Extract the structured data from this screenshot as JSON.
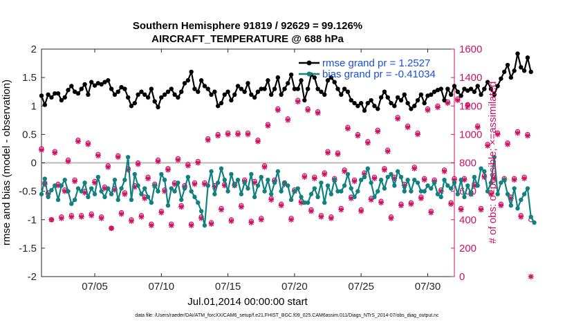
{
  "chart_data": {
    "type": "line",
    "title_line1": "Southern Hemisphere 91819 / 92629 = 99.126%",
    "title_line2": "AIRCRAFT_TEMPERATURE @ 688 hPa",
    "xlabel": "Jul.01,2014 00:00:00 start",
    "ylabel_left": "rmse and bias (model - observation)",
    "ylabel_right": "# of obs: o=possible; ×=assimilated",
    "footnote": "data file: /Users/raeder/DAI/ATM_forcXX/CAM6_setup/f.e21.FHIST_BGC.f09_025.CAM6assim.011/Diags_NTrS_2014-07/obs_diag_output.nc",
    "x_range_days": [
      1,
      32
    ],
    "ylim_left": [
      -2,
      2
    ],
    "ylim_right": [
      0,
      1600
    ],
    "x_ticks": [
      {
        "day": 5,
        "label": "07/05"
      },
      {
        "day": 10,
        "label": "07/10"
      },
      {
        "day": 15,
        "label": "07/15"
      },
      {
        "day": 20,
        "label": "07/20"
      },
      {
        "day": 25,
        "label": "07/25"
      },
      {
        "day": 30,
        "label": "07/30"
      }
    ],
    "y_ticks_left": [
      {
        "value": 2,
        "label": "2"
      },
      {
        "value": 1.5,
        "label": "1.5"
      },
      {
        "value": 1,
        "label": "1"
      },
      {
        "value": 0.5,
        "label": "0.5"
      },
      {
        "value": 0,
        "label": "0"
      },
      {
        "value": -0.5,
        "label": "-0.5"
      },
      {
        "value": -1,
        "label": "-1"
      },
      {
        "value": -1.5,
        "label": "-1.5"
      },
      {
        "value": -2,
        "label": "-2"
      }
    ],
    "y_ticks_right": [
      {
        "value": 1600,
        "label": "1600"
      },
      {
        "value": 1400,
        "label": "1400"
      },
      {
        "value": 1200,
        "label": "1200"
      },
      {
        "value": 1000,
        "label": "1000"
      },
      {
        "value": 800,
        "label": "800"
      },
      {
        "value": 600,
        "label": "600"
      },
      {
        "value": 400,
        "label": "400"
      },
      {
        "value": 200,
        "label": "200"
      },
      {
        "value": 0,
        "label": "0"
      }
    ],
    "series_rmse": {
      "name": "rmse",
      "legend_label": "rmse grand pr = 1.2527",
      "color": "#000000",
      "x_start": 1.0,
      "x_step": 0.25,
      "values": [
        1.18,
        1.02,
        1.2,
        1.15,
        1.22,
        1.22,
        1.1,
        1.15,
        1.28,
        1.35,
        1.25,
        1.22,
        1.3,
        1.38,
        1.2,
        1.42,
        1.36,
        1.4,
        1.38,
        1.42,
        1.45,
        1.3,
        1.2,
        1.25,
        1.33,
        1.3,
        1.15,
        1.0,
        1.05,
        1.2,
        1.25,
        1.2,
        1.15,
        1.3,
        1.08,
        0.98,
        1.15,
        1.2,
        1.25,
        1.3,
        1.2,
        1.15,
        1.25,
        1.4,
        1.45,
        1.6,
        1.3,
        1.25,
        1.45,
        1.35,
        1.3,
        1.2,
        1.25,
        1.0,
        1.05,
        1.2,
        1.25,
        1.1,
        1.2,
        1.35,
        1.3,
        1.25,
        1.4,
        1.2,
        1.15,
        1.25,
        1.3,
        1.3,
        1.45,
        1.2,
        1.3,
        1.5,
        1.2,
        1.3,
        1.4,
        1.55,
        1.3,
        1.3,
        1.45,
        1.1,
        1.3,
        1.55,
        1.5,
        1.3,
        1.25,
        1.2,
        1.45,
        1.5,
        1.42,
        1.3,
        1.2,
        1.3,
        1.25,
        1.1,
        1.05,
        1.0,
        1.05,
        0.92,
        1.05,
        1.1,
        1.0,
        0.95,
        1.15,
        1.25,
        1.15,
        1.05,
        1.0,
        1.15,
        1.1,
        1.2,
        1.05,
        0.95,
        1.0,
        1.1,
        1.2,
        1.05,
        1.18,
        1.2,
        1.25,
        1.28,
        1.3,
        1.1,
        1.3,
        1.2,
        1.35,
        1.25,
        1.18,
        1.3,
        1.27,
        1.3,
        1.25,
        1.35,
        1.2,
        1.3,
        1.42,
        1.3,
        1.2,
        1.35,
        1.48,
        1.6,
        1.72,
        1.5,
        1.62,
        1.92,
        1.68,
        1.62,
        1.85,
        1.6
      ]
    },
    "series_bias": {
      "name": "bias",
      "legend_label": "bias grand pr = -0.41034",
      "color": "#108080",
      "x_start": 1.0,
      "x_step": 0.25,
      "values": [
        -0.55,
        -0.28,
        -0.6,
        -0.48,
        -0.4,
        -0.65,
        -0.4,
        -0.3,
        -0.5,
        -0.72,
        -0.65,
        -0.45,
        -0.5,
        -0.35,
        -0.6,
        -0.45,
        -0.55,
        -0.25,
        -0.5,
        -0.6,
        -0.45,
        -0.55,
        -0.3,
        -0.65,
        -0.45,
        -0.3,
        0.1,
        -0.65,
        -0.2,
        -0.4,
        -0.55,
        -0.45,
        -0.6,
        -0.7,
        -0.4,
        -0.5,
        -0.2,
        -0.3,
        -0.75,
        -0.45,
        -0.5,
        -0.35,
        -0.65,
        -0.45,
        -0.25,
        -0.5,
        -0.6,
        -0.7,
        -0.85,
        -1.1,
        -0.4,
        -0.15,
        -0.55,
        -0.35,
        -0.1,
        -0.3,
        -0.5,
        -0.2,
        -0.4,
        -0.3,
        -0.55,
        -0.35,
        -0.45,
        -0.2,
        -0.6,
        -0.4,
        -0.25,
        -0.5,
        -0.3,
        -0.55,
        -0.35,
        -0.15,
        -0.5,
        -0.35,
        -0.4,
        -0.65,
        -0.5,
        -0.45,
        -0.6,
        -0.7,
        -0.7,
        -0.55,
        -0.45,
        -0.6,
        -0.35,
        -0.7,
        -0.4,
        -0.55,
        -0.3,
        -0.5,
        -0.5,
        -0.4,
        -0.2,
        -0.45,
        -0.6,
        -0.5,
        -0.3,
        -0.25,
        -0.1,
        -0.35,
        -0.6,
        -0.5,
        -0.3,
        -0.45,
        -0.25,
        -0.2,
        -0.4,
        -0.15,
        -0.25,
        -0.5,
        -0.3,
        -0.5,
        -0.3,
        -0.35,
        -0.5,
        -0.5,
        -0.4,
        -0.45,
        -0.35,
        -0.55,
        -0.6,
        -0.3,
        -0.4,
        -0.45,
        -0.35,
        -0.55,
        -0.3,
        -0.6,
        -0.4,
        -0.55,
        -0.25,
        -0.4,
        -0.1,
        -0.15,
        -0.5,
        -0.35,
        0.1,
        -0.55,
        -0.35,
        -0.3,
        -0.55,
        -0.75,
        -0.45,
        -0.8,
        -0.65,
        -0.55,
        -0.45,
        -0.95,
        -1.05
      ]
    },
    "obs_possible": {
      "legend_label": "o=possible",
      "color": "#d01060",
      "x_start": 1.0,
      "x_step": 0.25,
      "values": [
        900,
        660,
        590,
        400,
        880,
        650,
        420,
        610,
        820,
        430,
        680,
        960,
        430,
        600,
        940,
        440,
        670,
        860,
        420,
        630,
        780,
        340,
        620,
        850,
        450,
        590,
        760,
        400,
        640,
        800,
        430,
        560,
        700,
        370,
        650,
        820,
        460,
        610,
        760,
        370,
        660,
        830,
        500,
        640,
        790,
        370,
        660,
        810,
        420,
        660,
        970,
        380,
        640,
        1000,
        480,
        650,
        1010,
        400,
        650,
        1010,
        500,
        680,
        1010,
        390,
        670,
        960,
        410,
        780,
        1070,
        550,
        680,
        1180,
        510,
        660,
        1110,
        410,
        610,
        1240,
        530,
        710,
        1180,
        470,
        700,
        1160,
        430,
        730,
        880,
        420,
        690,
        870,
        480,
        750,
        1050,
        560,
        680,
        1000,
        470,
        730,
        950,
        550,
        700,
        1030,
        530,
        760,
        890,
        420,
        700,
        1120,
        510,
        650,
        1060,
        520,
        770,
        1010,
        560,
        690,
        1180,
        460,
        680,
        1200,
        610,
        750,
        1230,
        520,
        690,
        1250,
        480,
        690,
        1210,
        590,
        650,
        1060,
        480,
        710,
        930,
        590,
        700,
        1010,
        510,
        690,
        940,
        560,
        690,
        1020,
        430,
        700,
        1000,
        400
      ]
    },
    "obs_assimilated": {
      "legend_label": "×=assimilated",
      "color": "#d01060",
      "x_start": 1.0,
      "x_step": 0.25,
      "values": [
        890,
        650,
        580,
        400,
        870,
        640,
        410,
        600,
        810,
        420,
        670,
        950,
        420,
        590,
        930,
        430,
        660,
        850,
        410,
        620,
        770,
        340,
        610,
        840,
        440,
        580,
        750,
        390,
        630,
        790,
        420,
        550,
        690,
        360,
        640,
        810,
        450,
        600,
        750,
        360,
        650,
        820,
        490,
        630,
        780,
        360,
        650,
        800,
        410,
        650,
        960,
        370,
        630,
        990,
        470,
        640,
        1000,
        390,
        640,
        1000,
        490,
        670,
        1000,
        380,
        660,
        950,
        400,
        770,
        1060,
        540,
        670,
        1170,
        500,
        650,
        1100,
        400,
        600,
        1230,
        520,
        700,
        1170,
        460,
        690,
        1150,
        420,
        720,
        870,
        410,
        680,
        860,
        470,
        740,
        1040,
        550,
        670,
        990,
        460,
        720,
        940,
        540,
        690,
        1020,
        520,
        750,
        880,
        410,
        690,
        1110,
        500,
        640,
        1050,
        510,
        760,
        1000,
        550,
        680,
        1170,
        450,
        670,
        1190,
        600,
        740,
        1220,
        510,
        680,
        1240,
        470,
        680,
        1200,
        580,
        640,
        1050,
        470,
        700,
        920,
        580,
        690,
        1000,
        500,
        680,
        930,
        550,
        680,
        1010,
        420,
        690,
        990,
        0
      ]
    }
  }
}
